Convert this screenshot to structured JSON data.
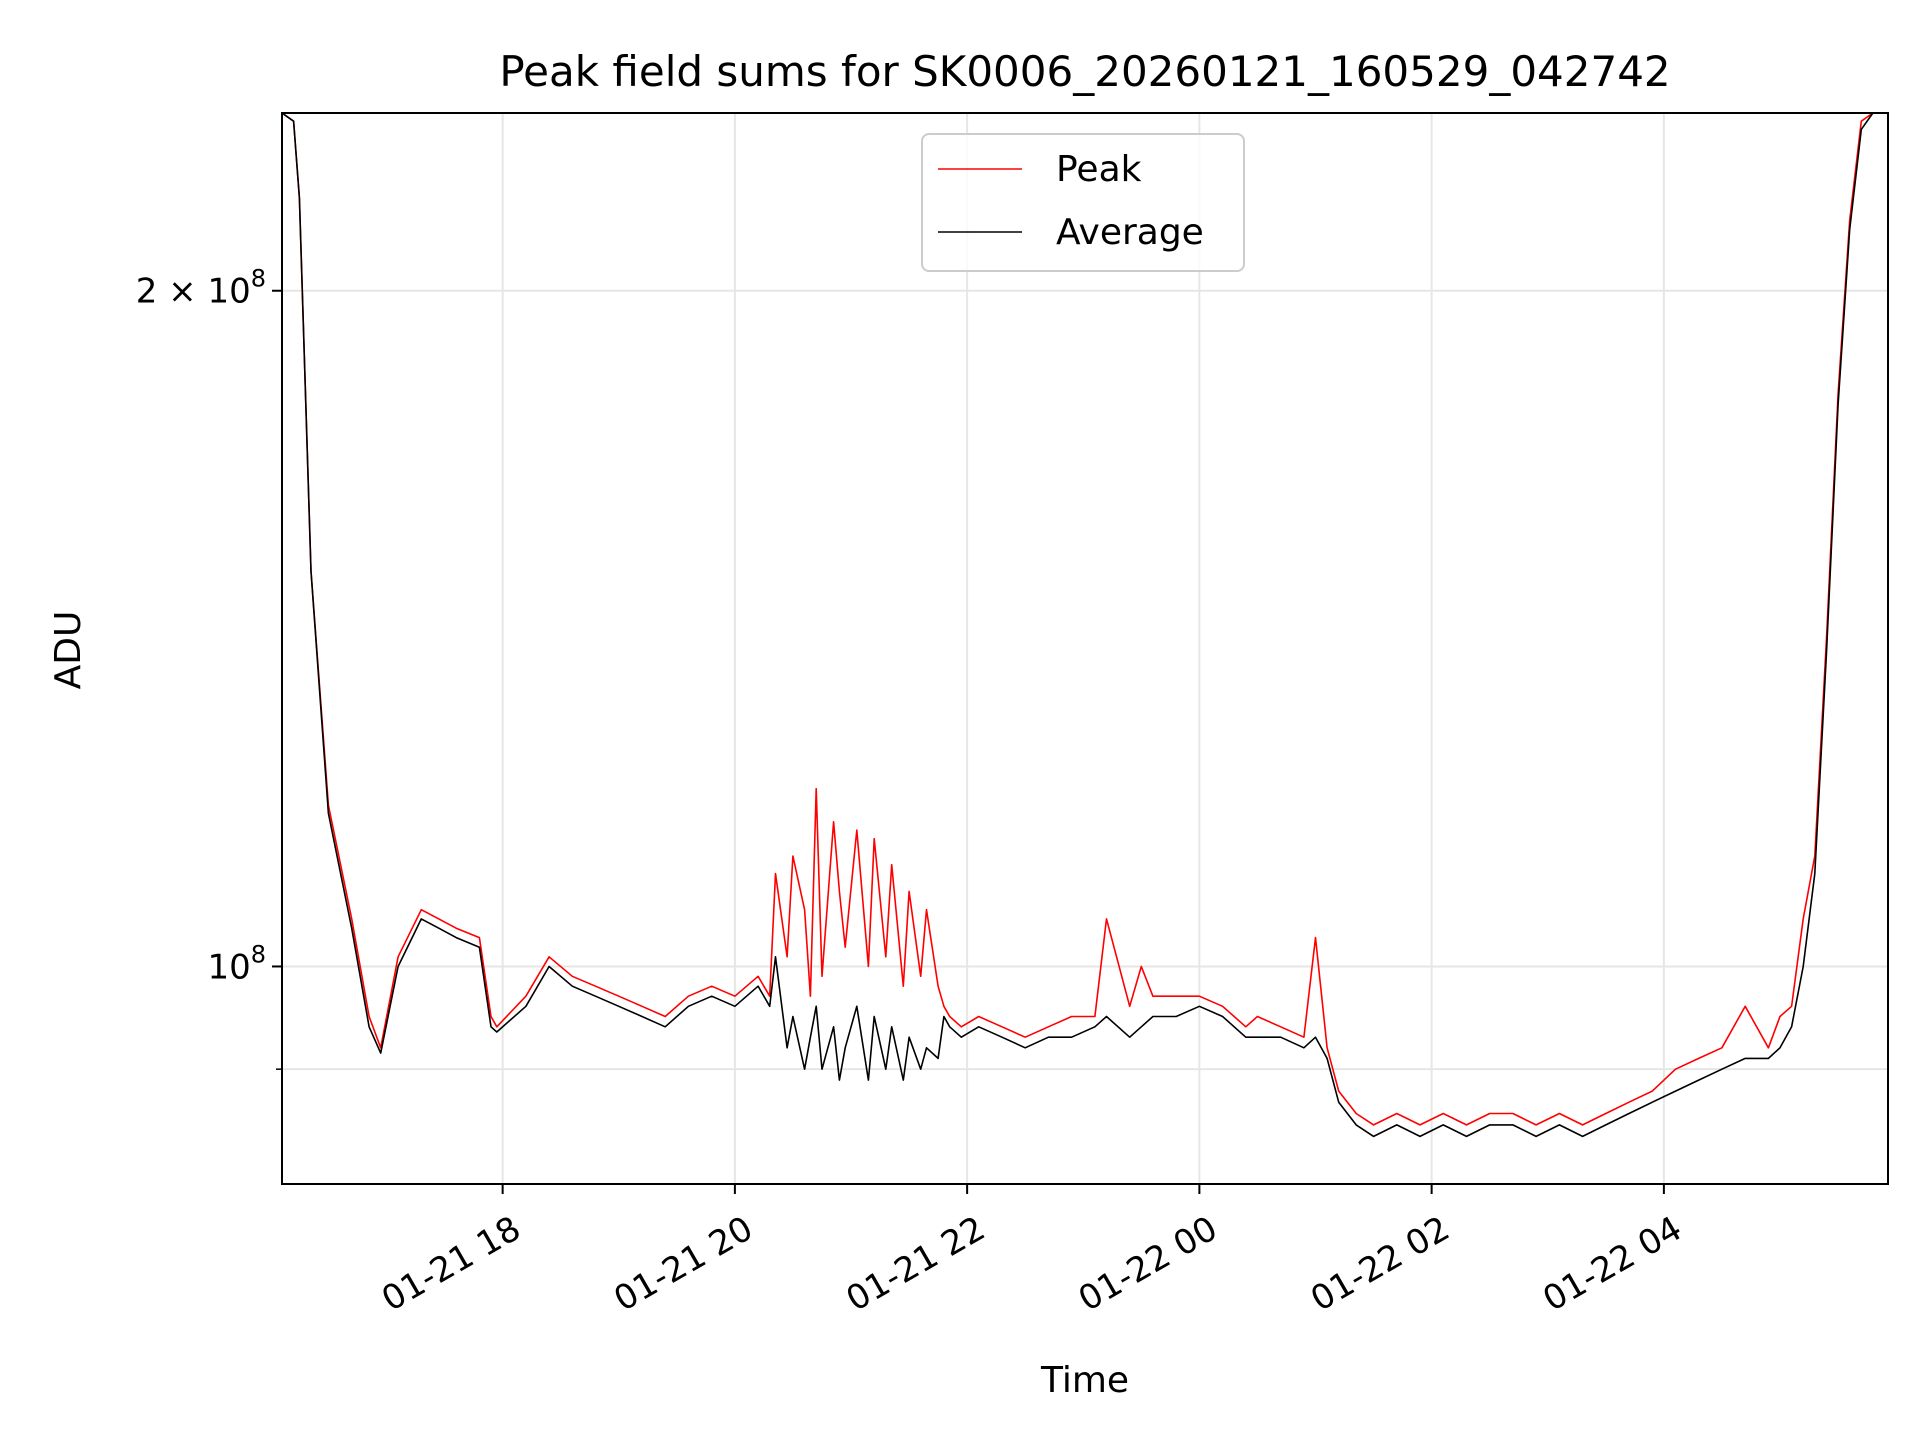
{
  "chart_data": {
    "type": "line",
    "title": "Peak field sums for SK0006_20260121_160529_042742",
    "xlabel": "Time",
    "ylabel": "ADU",
    "yscale": "log",
    "grid": true,
    "legend_position": "top-center",
    "x_unit": "hours since 2026-01-21 00:00",
    "xlim": [
      16.1,
      29.93
    ],
    "ylim": [
      80000000,
      240000000
    ],
    "x_ticks": [
      {
        "value": 18,
        "label": "01-21 18"
      },
      {
        "value": 20,
        "label": "01-21 20"
      },
      {
        "value": 22,
        "label": "01-21 22"
      },
      {
        "value": 24,
        "label": "01-22 00"
      },
      {
        "value": 26,
        "label": "01-22 02"
      },
      {
        "value": 28,
        "label": "01-22 04"
      }
    ],
    "y_ticks": [
      {
        "value": 100000000,
        "base": "10",
        "exp": "8",
        "coef": ""
      },
      {
        "value": 200000000,
        "base": "10",
        "exp": "8",
        "coef": "2 × "
      }
    ],
    "y_minor_ticks": [
      90000000
    ],
    "series": [
      {
        "name": "Peak",
        "color": "#ff0000",
        "x": [
          16.1,
          16.2,
          16.25,
          16.35,
          16.5,
          16.7,
          16.85,
          16.95,
          17.1,
          17.3,
          17.45,
          17.6,
          17.8,
          17.9,
          17.95,
          18.2,
          18.4,
          18.6,
          18.8,
          19.0,
          19.2,
          19.4,
          19.6,
          19.8,
          20.0,
          20.2,
          20.3,
          20.35,
          20.45,
          20.5,
          20.6,
          20.65,
          20.7,
          20.75,
          20.85,
          20.9,
          20.95,
          21.05,
          21.15,
          21.2,
          21.3,
          21.35,
          21.45,
          21.5,
          21.6,
          21.65,
          21.75,
          21.8,
          21.85,
          21.95,
          22.1,
          22.3,
          22.5,
          22.7,
          22.9,
          23.1,
          23.2,
          23.4,
          23.5,
          23.6,
          23.8,
          24.0,
          24.2,
          24.4,
          24.5,
          24.7,
          24.9,
          25.0,
          25.1,
          25.2,
          25.35,
          25.5,
          25.7,
          25.9,
          26.1,
          26.3,
          26.5,
          26.7,
          26.9,
          27.1,
          27.3,
          27.5,
          27.7,
          27.9,
          28.1,
          28.3,
          28.5,
          28.7,
          28.9,
          29.0,
          29.1,
          29.2,
          29.3,
          29.4,
          29.5,
          29.6,
          29.7,
          29.8,
          29.9
        ],
        "y": [
          240000000,
          238000000,
          220000000,
          150000000,
          118000000,
          105000000,
          95000000,
          92000000,
          101000000,
          106000000,
          105000000,
          104000000,
          103000000,
          95000000,
          94000000,
          97000000,
          101000000,
          99000000,
          98000000,
          97000000,
          96000000,
          95000000,
          97000000,
          98000000,
          97000000,
          99000000,
          97000000,
          110000000,
          101000000,
          112000000,
          106000000,
          97000000,
          120000000,
          99000000,
          116000000,
          108000000,
          102000000,
          115000000,
          100000000,
          114000000,
          101000000,
          111000000,
          98000000,
          108000000,
          99000000,
          106000000,
          98000000,
          96000000,
          95000000,
          94000000,
          95000000,
          94000000,
          93000000,
          94000000,
          95000000,
          95000000,
          105000000,
          96000000,
          100000000,
          97000000,
          97000000,
          97000000,
          96000000,
          94000000,
          95000000,
          94000000,
          93000000,
          103000000,
          92000000,
          88000000,
          86000000,
          85000000,
          86000000,
          85000000,
          86000000,
          85000000,
          86000000,
          86000000,
          85000000,
          86000000,
          85000000,
          86000000,
          87000000,
          88000000,
          90000000,
          91000000,
          92000000,
          96000000,
          92000000,
          95000000,
          96000000,
          105000000,
          112000000,
          140000000,
          180000000,
          215000000,
          238000000,
          240000000,
          240000000
        ]
      },
      {
        "name": "Average",
        "color": "#000000",
        "x": [
          16.1,
          16.2,
          16.25,
          16.35,
          16.5,
          16.7,
          16.85,
          16.95,
          17.1,
          17.3,
          17.45,
          17.6,
          17.8,
          17.9,
          17.95,
          18.2,
          18.4,
          18.6,
          18.8,
          19.0,
          19.2,
          19.4,
          19.6,
          19.8,
          20.0,
          20.2,
          20.3,
          20.35,
          20.45,
          20.5,
          20.6,
          20.65,
          20.7,
          20.75,
          20.85,
          20.9,
          20.95,
          21.05,
          21.15,
          21.2,
          21.3,
          21.35,
          21.45,
          21.5,
          21.6,
          21.65,
          21.75,
          21.8,
          21.85,
          21.95,
          22.1,
          22.3,
          22.5,
          22.7,
          22.9,
          23.1,
          23.2,
          23.4,
          23.5,
          23.6,
          23.8,
          24.0,
          24.2,
          24.4,
          24.5,
          24.7,
          24.9,
          25.0,
          25.1,
          25.2,
          25.35,
          25.5,
          25.7,
          25.9,
          26.1,
          26.3,
          26.5,
          26.7,
          26.9,
          27.1,
          27.3,
          27.5,
          27.7,
          27.9,
          28.1,
          28.3,
          28.5,
          28.7,
          28.9,
          29.0,
          29.1,
          29.2,
          29.3,
          29.4,
          29.5,
          29.6,
          29.7,
          29.8,
          29.9
        ],
        "y": [
          240000000,
          238000000,
          220000000,
          150000000,
          117000000,
          104000000,
          94000000,
          91500000,
          100000000,
          105000000,
          104000000,
          103000000,
          102000000,
          94000000,
          93500000,
          96000000,
          100000000,
          98000000,
          97000000,
          96000000,
          95000000,
          94000000,
          96000000,
          97000000,
          96000000,
          98000000,
          96000000,
          101000000,
          92000000,
          95000000,
          90000000,
          93000000,
          96000000,
          90000000,
          94000000,
          89000000,
          92000000,
          96000000,
          89000000,
          95000000,
          90000000,
          94000000,
          89000000,
          93000000,
          90000000,
          92000000,
          91000000,
          95000000,
          94000000,
          93000000,
          94000000,
          93000000,
          92000000,
          93000000,
          93000000,
          94000000,
          95000000,
          93000000,
          94000000,
          95000000,
          95000000,
          96000000,
          95000000,
          93000000,
          93000000,
          93000000,
          92000000,
          93000000,
          91000000,
          87000000,
          85000000,
          84000000,
          85000000,
          84000000,
          85000000,
          84000000,
          85000000,
          85000000,
          84000000,
          85000000,
          84000000,
          85000000,
          86000000,
          87000000,
          88000000,
          89000000,
          90000000,
          91000000,
          91000000,
          92000000,
          94000000,
          100000000,
          110000000,
          138000000,
          178000000,
          213000000,
          236000000,
          240000000,
          240000000
        ]
      }
    ]
  }
}
